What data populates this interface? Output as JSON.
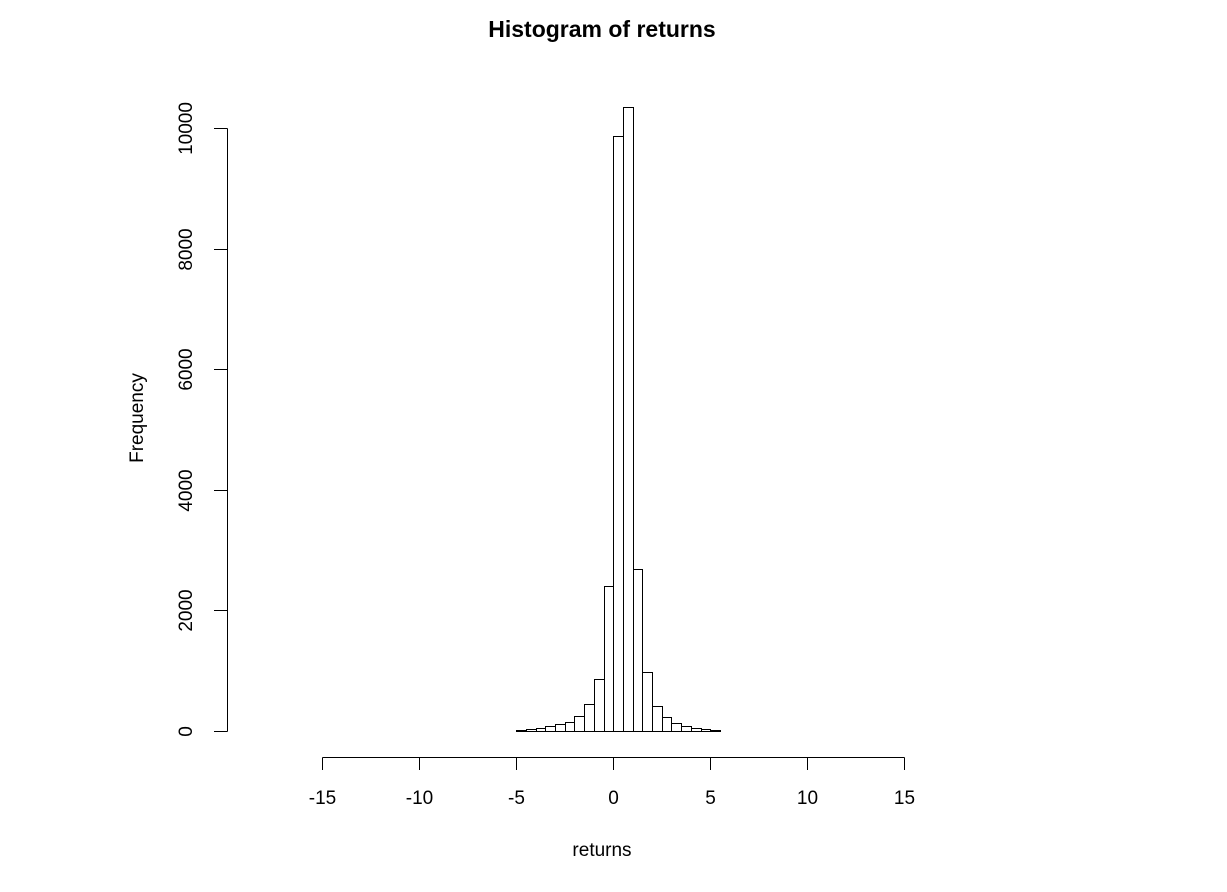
{
  "chart_data": {
    "type": "bar",
    "title": "Histogram of returns",
    "xlabel": "returns",
    "ylabel": "Frequency",
    "xlim": [
      -18.5,
      17.5
    ],
    "ylim": [
      0,
      10400
    ],
    "x_ticks": [
      -15,
      -10,
      -5,
      0,
      5,
      10,
      15
    ],
    "y_ticks": [
      0,
      2000,
      4000,
      6000,
      8000,
      10000
    ],
    "bin_width": 0.5,
    "bins": [
      {
        "x0": -18.5,
        "x1": -5.5,
        "count": 0
      },
      {
        "x0": -5.5,
        "x1": -5.0,
        "count": 5
      },
      {
        "x0": -5.0,
        "x1": -4.5,
        "count": 10
      },
      {
        "x0": -4.5,
        "x1": -4.0,
        "count": 25
      },
      {
        "x0": -4.0,
        "x1": -3.5,
        "count": 50
      },
      {
        "x0": -3.5,
        "x1": -3.0,
        "count": 75
      },
      {
        "x0": -3.0,
        "x1": -2.5,
        "count": 120
      },
      {
        "x0": -2.5,
        "x1": -2.0,
        "count": 150
      },
      {
        "x0": -2.0,
        "x1": -1.5,
        "count": 250
      },
      {
        "x0": -1.5,
        "x1": -1.0,
        "count": 450
      },
      {
        "x0": -1.0,
        "x1": -0.5,
        "count": 860
      },
      {
        "x0": -0.5,
        "x1": 0.0,
        "count": 2400
      },
      {
        "x0": 0.0,
        "x1": 0.5,
        "count": 9870
      },
      {
        "x0": 0.5,
        "x1": 1.0,
        "count": 10350
      },
      {
        "x0": 1.0,
        "x1": 1.5,
        "count": 2680
      },
      {
        "x0": 1.5,
        "x1": 2.0,
        "count": 980
      },
      {
        "x0": 2.0,
        "x1": 2.5,
        "count": 420
      },
      {
        "x0": 2.5,
        "x1": 3.0,
        "count": 240
      },
      {
        "x0": 3.0,
        "x1": 3.5,
        "count": 140
      },
      {
        "x0": 3.5,
        "x1": 4.0,
        "count": 80
      },
      {
        "x0": 4.0,
        "x1": 4.5,
        "count": 50
      },
      {
        "x0": 4.5,
        "x1": 5.0,
        "count": 25
      },
      {
        "x0": 5.0,
        "x1": 5.5,
        "count": 10
      },
      {
        "x0": 5.5,
        "x1": 6.0,
        "count": 5
      },
      {
        "x0": 6.0,
        "x1": 17.5,
        "count": 0
      }
    ],
    "grid": false,
    "legend": "none"
  }
}
